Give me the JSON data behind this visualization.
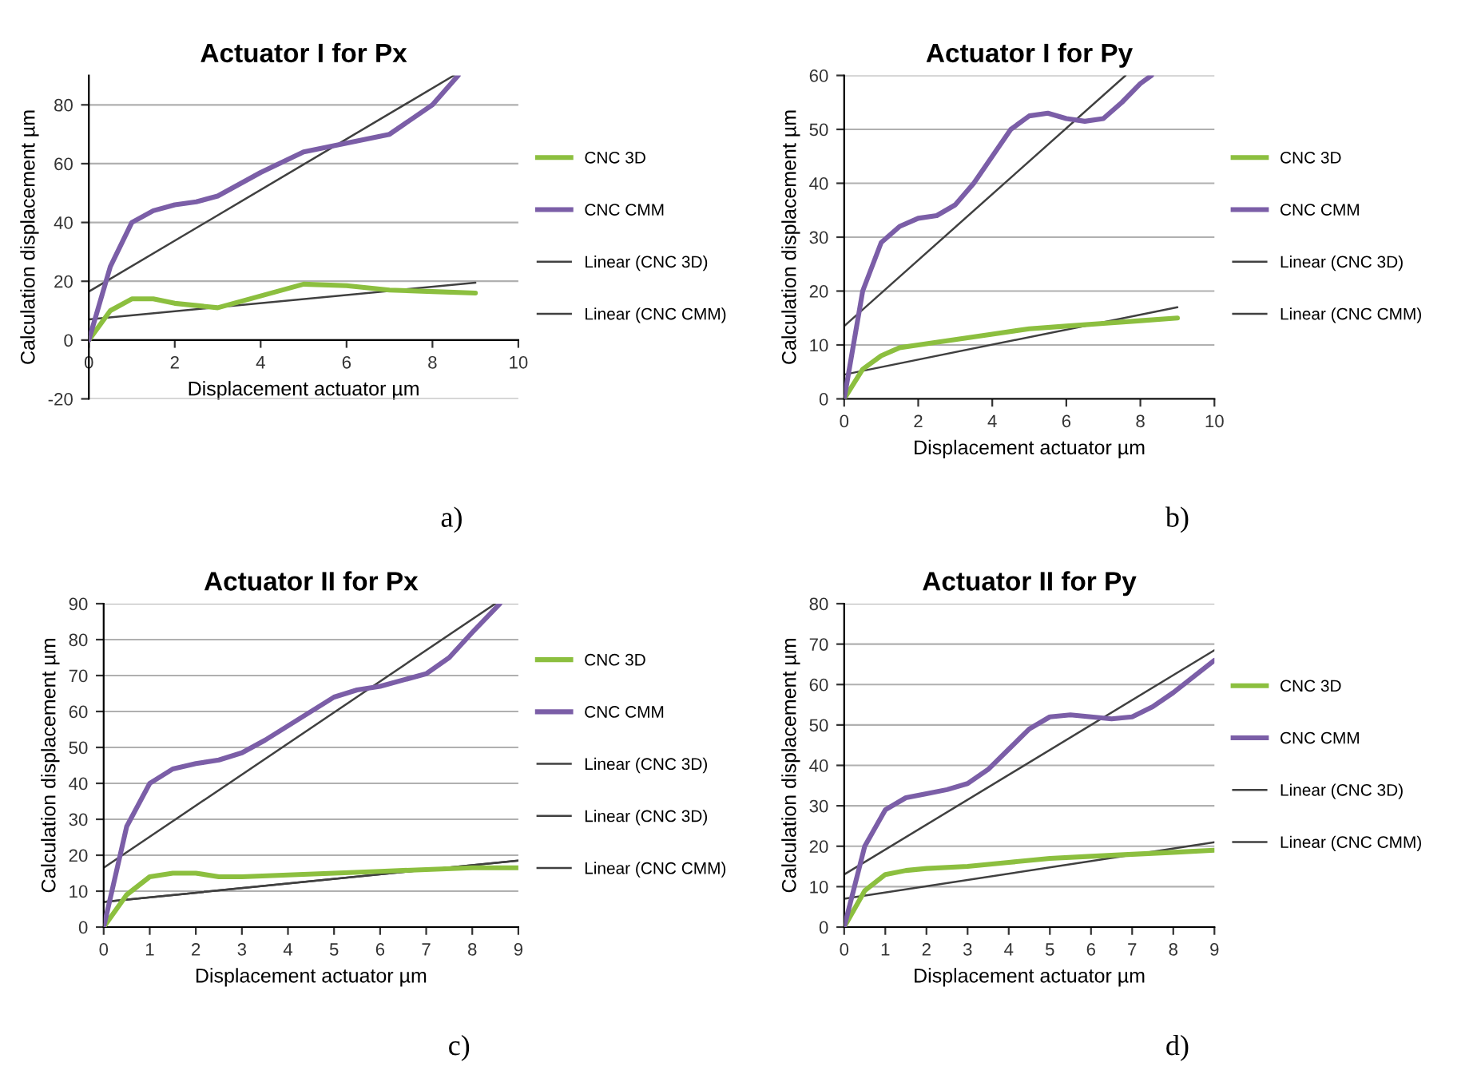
{
  "chart_data": [
    {
      "type": "line",
      "title": "Actuator I for Px",
      "xlabel": "Displacement actuator µm",
      "ylabel": "Calculation displacement µm",
      "annotations": [
        "a)"
      ],
      "xlim": [
        0,
        10
      ],
      "xticks": [
        0,
        2,
        4,
        6,
        8,
        10
      ],
      "ylim": [
        -20,
        90
      ],
      "yticks": [
        -20,
        0,
        20,
        40,
        60,
        80
      ],
      "grid": "y",
      "legend": "right",
      "marker": "none",
      "line_style": "solid",
      "series": [
        {
          "name": "CNC 3D",
          "color": "#8cbf3f",
          "x": [
            0,
            0.5,
            1,
            1.5,
            2,
            3,
            4,
            5,
            6,
            7,
            8,
            9
          ],
          "values": [
            0,
            10,
            14,
            14,
            12.5,
            11,
            15,
            19,
            18.5,
            17,
            16.5,
            16
          ]
        },
        {
          "name": "CNC CMM",
          "color": "#7b5ea7",
          "x": [
            0,
            0.5,
            1,
            1.5,
            2,
            2.5,
            3,
            4,
            5,
            6,
            7,
            8,
            8.6
          ],
          "values": [
            0,
            25,
            40,
            44,
            46,
            47,
            49,
            57,
            64,
            67,
            70,
            80,
            90
          ]
        },
        {
          "name": "Linear (CNC 3D)",
          "color": "#404040",
          "x": [
            0,
            9
          ],
          "values": [
            7,
            19.5
          ]
        },
        {
          "name": "Linear (CNC CMM)",
          "color": "#404040",
          "x": [
            0,
            8.5
          ],
          "values": [
            16.5,
            90
          ]
        }
      ]
    },
    {
      "type": "line",
      "title": "Actuator I for Py",
      "xlabel": "Displacement actuator µm",
      "ylabel": "Calculation displacement µm",
      "annotations": [
        "b)"
      ],
      "xlim": [
        0,
        10
      ],
      "xticks": [
        0,
        2,
        4,
        6,
        8,
        10
      ],
      "ylim": [
        0,
        60
      ],
      "yticks": [
        0,
        10,
        20,
        30,
        40,
        50,
        60
      ],
      "grid": "y",
      "legend": "right",
      "marker": "none",
      "line_style": "solid",
      "series": [
        {
          "name": "CNC 3D",
          "color": "#8cbf3f",
          "x": [
            0,
            0.5,
            1,
            1.5,
            2,
            3,
            4,
            5,
            6,
            7,
            8,
            9
          ],
          "values": [
            0,
            5.5,
            8,
            9.5,
            10,
            11,
            12,
            13,
            13.5,
            14,
            14.5,
            15
          ]
        },
        {
          "name": "CNC CMM",
          "color": "#7b5ea7",
          "x": [
            0,
            0.5,
            1,
            1.5,
            2,
            2.5,
            3,
            3.5,
            4,
            4.5,
            5,
            5.5,
            6,
            6.5,
            7,
            7.5,
            8,
            8.3
          ],
          "values": [
            0,
            20,
            29,
            32,
            33.5,
            34,
            36,
            40,
            45,
            50,
            52.5,
            53,
            52,
            51.5,
            52,
            55,
            58.5,
            60
          ]
        },
        {
          "name": "Linear (CNC 3D)",
          "color": "#404040",
          "x": [
            0,
            9
          ],
          "values": [
            4.5,
            17
          ]
        },
        {
          "name": "Linear (CNC CMM)",
          "color": "#404040",
          "x": [
            0,
            7.6
          ],
          "values": [
            13.5,
            60
          ]
        }
      ]
    },
    {
      "type": "line",
      "title": "Actuator II for Px",
      "xlabel": "Displacement actuator µm",
      "ylabel": "Calculation displacement µm",
      "annotations": [
        "c)"
      ],
      "xlim": [
        0,
        9
      ],
      "xticks": [
        0,
        1,
        2,
        3,
        4,
        5,
        6,
        7,
        8,
        9
      ],
      "ylim": [
        0,
        90
      ],
      "yticks": [
        0,
        10,
        20,
        30,
        40,
        50,
        60,
        70,
        80,
        90
      ],
      "grid": "y",
      "legend": "right",
      "marker": "none",
      "line_style": "solid",
      "series": [
        {
          "name": "CNC 3D",
          "color": "#8cbf3f",
          "x": [
            0,
            0.5,
            1,
            1.5,
            2,
            2.5,
            3,
            4,
            5,
            6,
            7,
            8,
            9
          ],
          "values": [
            0,
            9,
            14,
            15,
            15,
            14,
            14,
            14.5,
            15,
            15.5,
            16,
            16.5,
            16.5
          ]
        },
        {
          "name": "CNC CMM",
          "color": "#7b5ea7",
          "x": [
            0,
            0.5,
            1,
            1.5,
            2,
            2.5,
            3,
            3.5,
            4,
            5,
            5.5,
            6,
            7,
            7.5,
            8,
            8.6
          ],
          "values": [
            0,
            28,
            40,
            44,
            45.5,
            46.5,
            48.5,
            52,
            56,
            64,
            66,
            67,
            70.5,
            75,
            82,
            90
          ]
        },
        {
          "name": "Linear (CNC 3D)",
          "color": "#404040",
          "x": [
            0,
            9
          ],
          "values": [
            7,
            18.5
          ]
        },
        {
          "name": "Linear (CNC 3D)",
          "color": "#404040",
          "x": [
            0,
            8.5
          ],
          "values": [
            16.5,
            90
          ]
        },
        {
          "name": "Linear (CNC CMM)",
          "color": "#404040",
          "x": [
            0,
            9
          ],
          "values": [
            7,
            18.5
          ]
        }
      ]
    },
    {
      "type": "line",
      "title": "Actuator II for Py",
      "xlabel": "Displacement actuator µm",
      "ylabel": "Calculation displacement µm",
      "annotations": [
        "d)"
      ],
      "xlim": [
        0,
        9
      ],
      "xticks": [
        0,
        1,
        2,
        3,
        4,
        5,
        6,
        7,
        8,
        9
      ],
      "ylim": [
        0,
        80
      ],
      "yticks": [
        0,
        10,
        20,
        30,
        40,
        50,
        60,
        70,
        80
      ],
      "grid": "y",
      "legend": "right",
      "marker": "none",
      "line_style": "solid",
      "series": [
        {
          "name": "CNC 3D",
          "color": "#8cbf3f",
          "x": [
            0,
            0.5,
            1,
            1.5,
            2,
            3,
            4,
            5,
            6,
            7,
            8,
            9
          ],
          "values": [
            0,
            9,
            13,
            14,
            14.5,
            15,
            16,
            17,
            17.5,
            18,
            18.5,
            19
          ]
        },
        {
          "name": "CNC CMM",
          "color": "#7b5ea7",
          "x": [
            0,
            0.5,
            1,
            1.5,
            2,
            2.5,
            3,
            3.5,
            4,
            4.5,
            5,
            5.5,
            6,
            6.5,
            7,
            7.5,
            8,
            8.5,
            9
          ],
          "values": [
            0,
            20,
            29,
            32,
            33,
            34,
            35.5,
            39,
            44,
            49,
            52,
            52.5,
            52,
            51.5,
            52,
            54.5,
            58,
            62,
            66
          ]
        },
        {
          "name": "Linear (CNC 3D)",
          "color": "#404040",
          "x": [
            0,
            9
          ],
          "values": [
            13,
            68.5
          ]
        },
        {
          "name": "Linear (CNC CMM)",
          "color": "#404040",
          "x": [
            0,
            9
          ],
          "values": [
            7,
            21
          ]
        }
      ]
    }
  ]
}
